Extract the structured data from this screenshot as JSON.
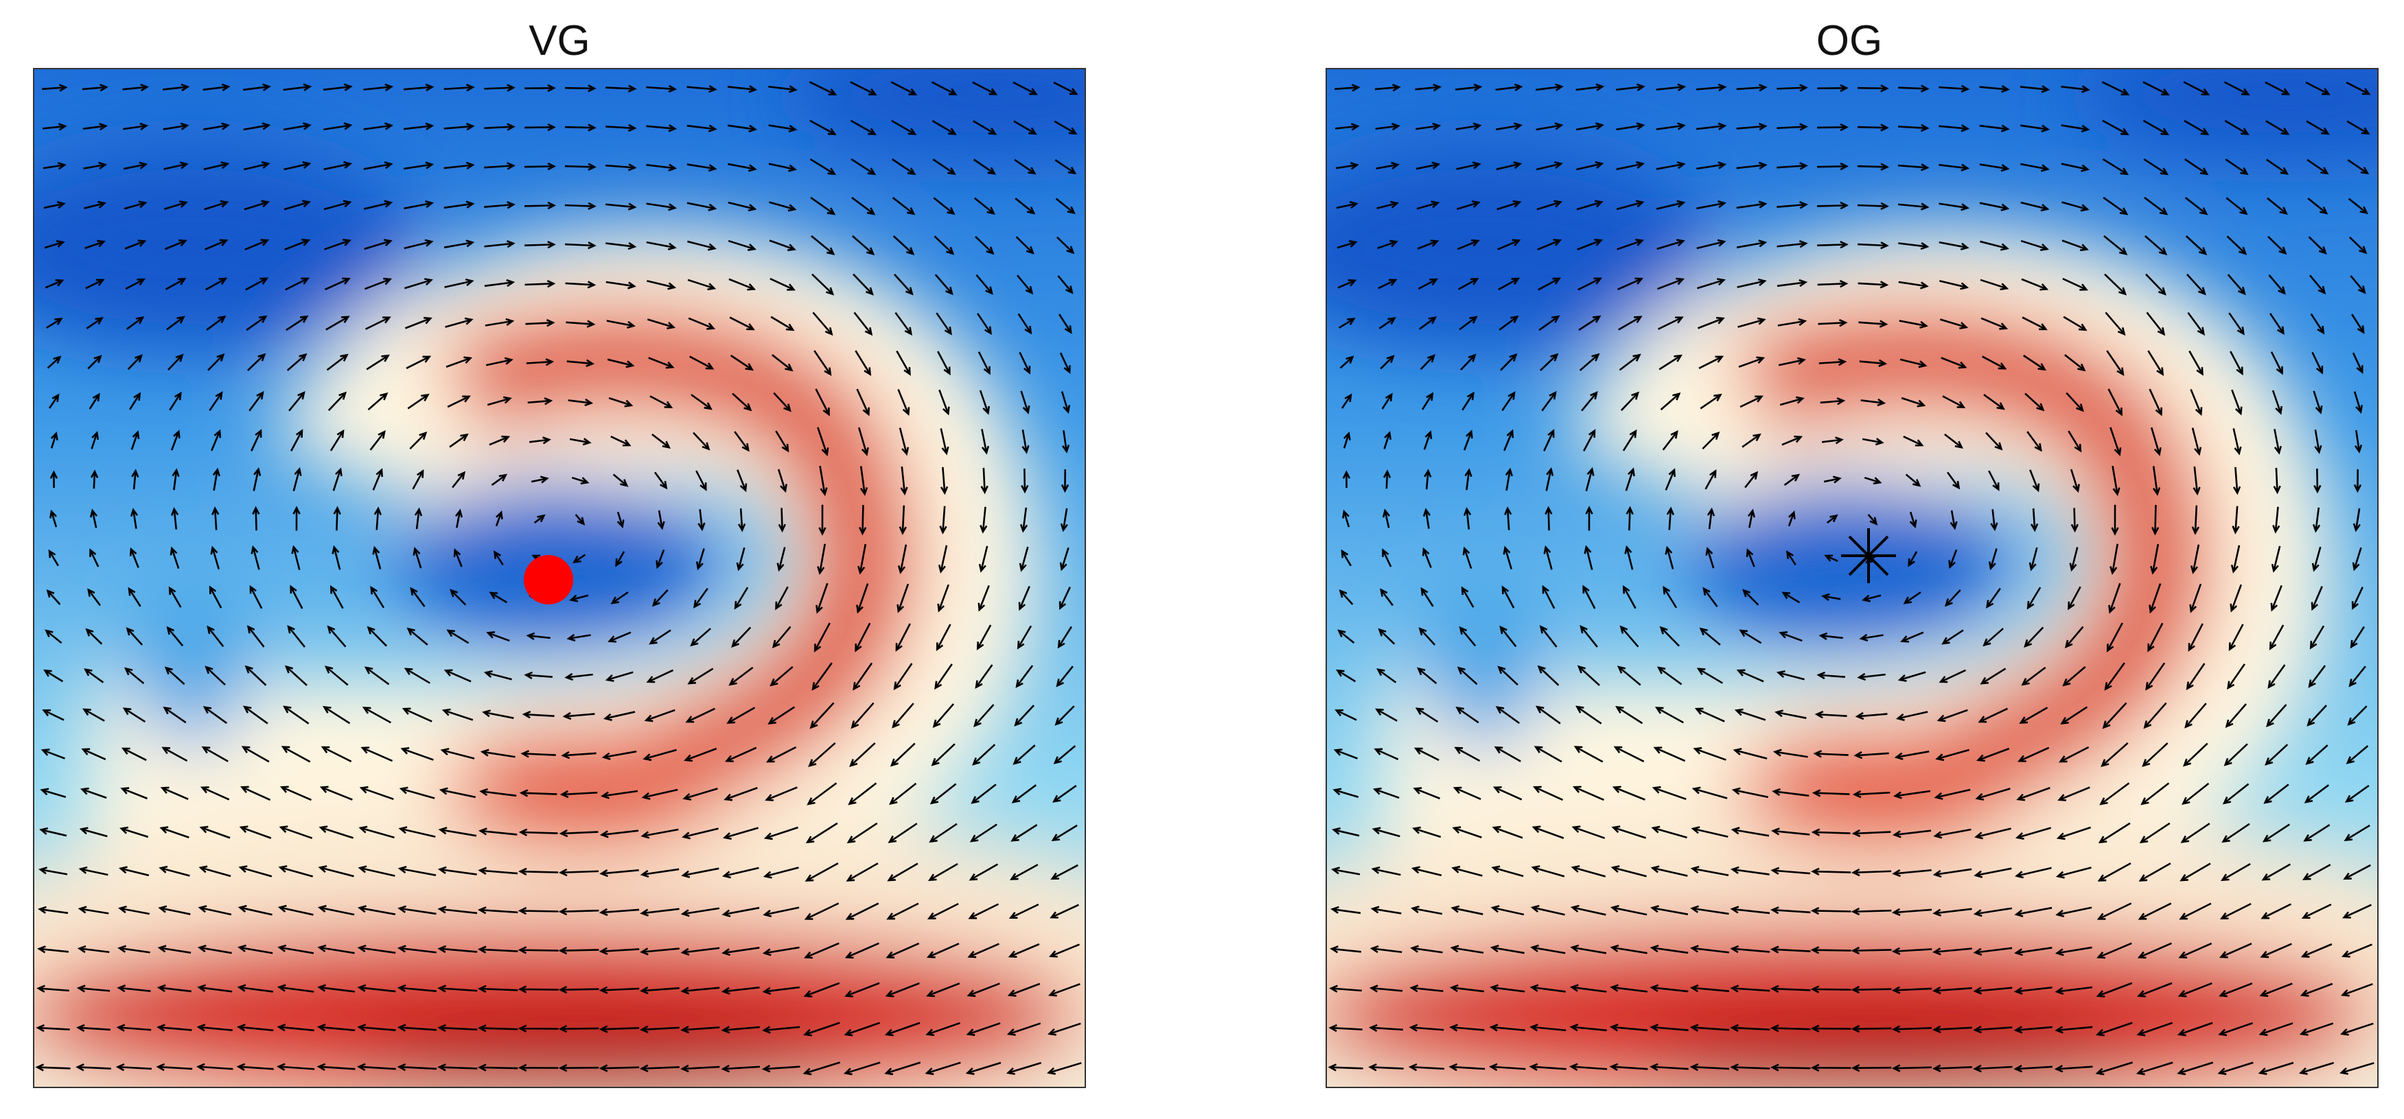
{
  "panels": [
    {
      "title": "VG"
    },
    {
      "title": "OG"
    }
  ]
}
